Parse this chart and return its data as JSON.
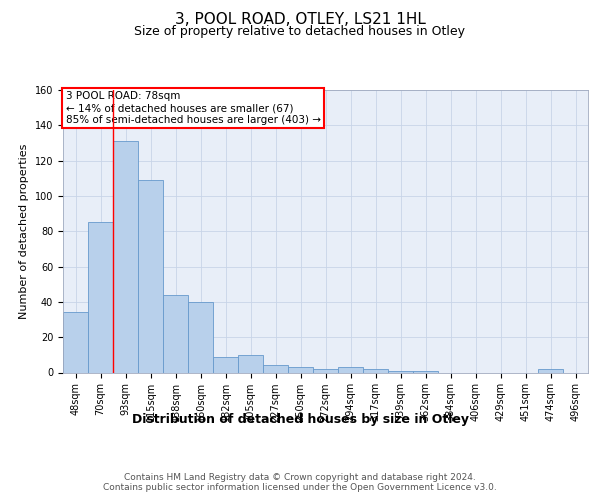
{
  "title": "3, POOL ROAD, OTLEY, LS21 1HL",
  "subtitle": "Size of property relative to detached houses in Otley",
  "xlabel": "Distribution of detached houses by size in Otley",
  "ylabel": "Number of detached properties",
  "bar_labels": [
    "48sqm",
    "70sqm",
    "93sqm",
    "115sqm",
    "138sqm",
    "160sqm",
    "182sqm",
    "205sqm",
    "227sqm",
    "250sqm",
    "272sqm",
    "294sqm",
    "317sqm",
    "339sqm",
    "362sqm",
    "384sqm",
    "406sqm",
    "429sqm",
    "451sqm",
    "474sqm",
    "496sqm"
  ],
  "bar_values": [
    34,
    85,
    131,
    109,
    44,
    40,
    9,
    10,
    4,
    3,
    2,
    3,
    2,
    1,
    1,
    0,
    0,
    0,
    0,
    2,
    0
  ],
  "bar_color": "#b8d0eb",
  "bar_edge_color": "#6699cc",
  "background_color": "#e8eef8",
  "red_line_index": 1.5,
  "annotation_line1": "3 POOL ROAD: 78sqm",
  "annotation_line2": "← 14% of detached houses are smaller (67)",
  "annotation_line3": "85% of semi-detached houses are larger (403) →",
  "annotation_box_color": "white",
  "annotation_box_edge_color": "red",
  "footer_text": "Contains HM Land Registry data © Crown copyright and database right 2024.\nContains public sector information licensed under the Open Government Licence v3.0.",
  "ylim": [
    0,
    160
  ],
  "yticks": [
    0,
    20,
    40,
    60,
    80,
    100,
    120,
    140,
    160
  ],
  "grid_color": "#c8d4e8",
  "title_fontsize": 11,
  "subtitle_fontsize": 9,
  "xlabel_fontsize": 9,
  "ylabel_fontsize": 8,
  "tick_fontsize": 7,
  "annotation_fontsize": 7.5,
  "footer_fontsize": 6.5
}
